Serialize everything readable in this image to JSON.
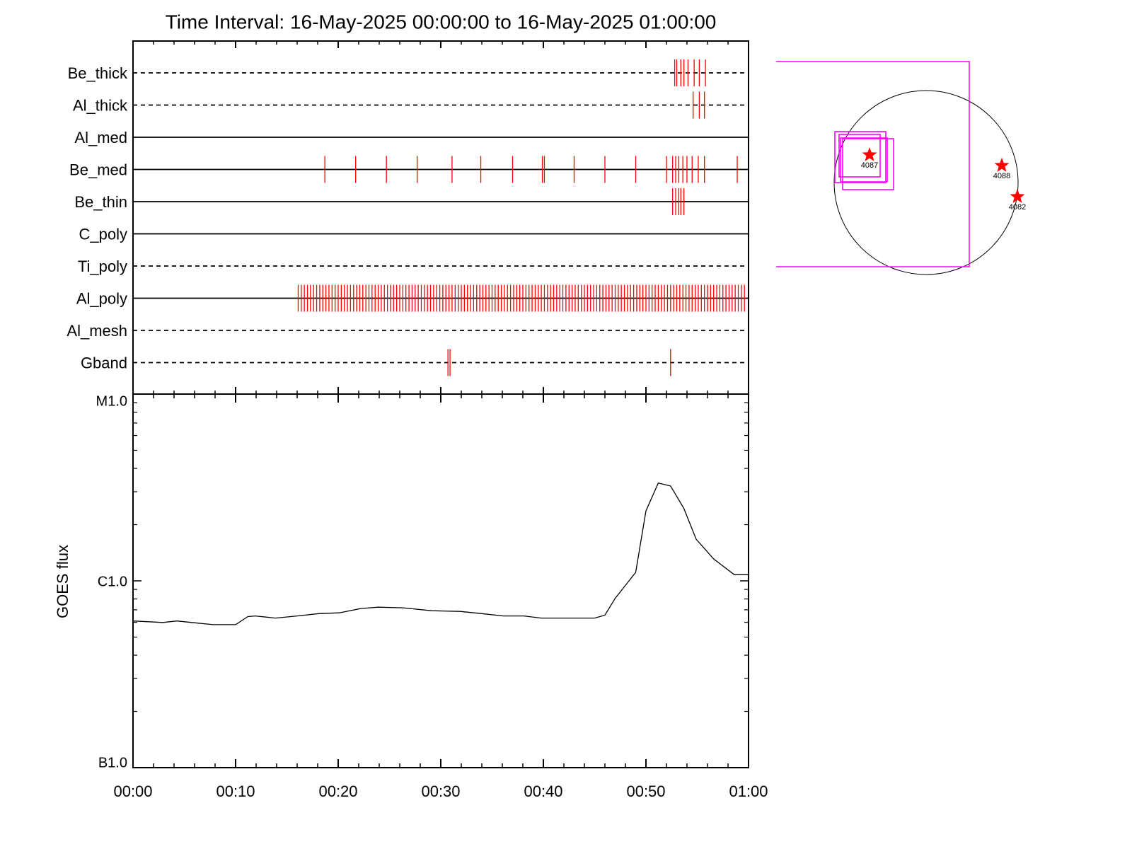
{
  "chart_data": [
    {
      "type": "event",
      "title": "Time Interval: 16-May-2025 00:00:00 to 16-May-2025 01:00:00",
      "xlim": [
        0,
        60
      ],
      "rows": [
        {
          "name": "Be_thick",
          "style": "dashed",
          "color": "#ff0000",
          "events": [
            52.8,
            53.0,
            53.4,
            53.7,
            54.1,
            54.7,
            55.2,
            55.8
          ]
        },
        {
          "name": "Al_thick",
          "style": "dashed",
          "color": "#ff0000",
          "events": [
            54.6,
            55.2,
            55.7
          ]
        },
        {
          "name": "Al_med",
          "style": "solid",
          "color": "#ff0000",
          "events": []
        },
        {
          "name": "Be_med",
          "style": "solid",
          "color": "#ff0000",
          "events": [
            18.7,
            21.7,
            24.7,
            27.7,
            31.1,
            33.9,
            37.0,
            39.9,
            40.1,
            43.0,
            46.0,
            49.0,
            52.0,
            52.6,
            52.9,
            53.2,
            53.6,
            54.0,
            54.5,
            55.1,
            55.7,
            58.9
          ]
        },
        {
          "name": "Be_thin",
          "style": "solid",
          "color": "#ff0000",
          "events": [
            52.6,
            52.9,
            53.2,
            53.4,
            53.7
          ]
        },
        {
          "name": "C_poly",
          "style": "solid",
          "color": "#ff0000",
          "events": []
        },
        {
          "name": "Ti_poly",
          "style": "dashed",
          "color": "#ff0000",
          "events": []
        },
        {
          "name": "Al_poly",
          "style": "solid",
          "color": "#ff0000",
          "events": [
            16.1,
            16.4,
            16.7,
            17.0,
            17.3,
            17.6,
            17.9,
            18.2,
            18.5,
            18.8,
            19.1,
            19.4,
            19.7,
            20.0,
            20.3,
            20.6,
            20.9,
            21.2,
            21.5,
            21.8,
            22.1,
            22.4,
            22.7,
            23.0,
            23.3,
            23.6,
            23.9,
            24.2,
            24.5,
            24.8,
            25.1,
            25.4,
            25.7,
            26.0,
            26.3,
            26.6,
            26.9,
            27.2,
            27.5,
            27.8,
            28.1,
            28.4,
            28.7,
            29.0,
            29.3,
            29.6,
            29.9,
            30.2,
            30.5,
            30.8,
            31.1,
            31.4,
            31.7,
            32.0,
            32.3,
            32.6,
            32.9,
            33.2,
            33.5,
            33.8,
            34.1,
            34.4,
            34.7,
            35.0,
            35.3,
            35.6,
            35.9,
            36.2,
            36.5,
            36.8,
            37.1,
            37.4,
            37.7,
            38.0,
            38.3,
            38.6,
            38.9,
            39.2,
            39.5,
            39.8,
            40.1,
            40.4,
            40.7,
            41.0,
            41.3,
            41.6,
            41.9,
            42.2,
            42.5,
            42.8,
            43.1,
            43.4,
            43.7,
            44.0,
            44.3,
            44.6,
            44.9,
            45.2,
            45.5,
            45.8,
            46.1,
            46.4,
            46.7,
            47.0,
            47.3,
            47.6,
            47.9,
            48.2,
            48.5,
            48.8,
            49.1,
            49.4,
            49.7,
            50.0,
            50.3,
            50.6,
            50.9,
            51.2,
            51.5,
            51.8,
            52.1,
            52.4,
            52.7,
            53.0,
            53.3,
            53.6,
            53.9,
            54.2,
            54.5,
            54.8,
            55.1,
            55.4,
            55.7,
            56.0,
            56.3,
            56.6,
            56.9,
            57.2,
            57.5,
            57.8,
            58.1,
            58.4,
            58.7,
            59.0,
            59.3,
            59.6
          ]
        },
        {
          "name": "Al_mesh",
          "style": "dashed",
          "color": "#ff0000",
          "events": []
        },
        {
          "name": "Gband",
          "style": "dashed",
          "color": "#ff0000",
          "events": [
            30.7,
            30.9,
            52.4
          ]
        }
      ]
    },
    {
      "type": "line",
      "ylabel": "GOES flux",
      "log_y": true,
      "color": "#000000",
      "xlim": [
        0,
        60
      ],
      "xticks": [
        {
          "value": 0,
          "label": "00:00"
        },
        {
          "value": 10,
          "label": "00:10"
        },
        {
          "value": 20,
          "label": "00:20"
        },
        {
          "value": 30,
          "label": "00:30"
        },
        {
          "value": 40,
          "label": "00:40"
        },
        {
          "value": 50,
          "label": "00:50"
        },
        {
          "value": 60,
          "label": "01:00"
        }
      ],
      "ylim": [
        1e-07,
        1e-05
      ],
      "yticks": [
        {
          "value": 1e-07,
          "label": "B1.0"
        },
        {
          "value": 1e-06,
          "label": "C1.0"
        },
        {
          "value": 1e-05,
          "label": "M1.0"
        }
      ],
      "x": [
        0,
        2.9,
        4.3,
        5.7,
        7.8,
        10.0,
        11.2,
        11.9,
        13.9,
        16.0,
        18.1,
        20.1,
        22.2,
        23.9,
        26.3,
        29.1,
        31.9,
        34.0,
        36.1,
        38.1,
        39.8,
        42.3,
        45.0,
        46.0,
        47.0,
        49.0,
        50.0,
        51.2,
        52.4,
        53.7,
        54.9,
        56.6,
        58.6,
        60.0
      ],
      "values": [
        6.1e-07,
        5.99e-07,
        6.1e-07,
        5.99e-07,
        5.83e-07,
        5.83e-07,
        6.44e-07,
        6.49e-07,
        6.32e-07,
        6.49e-07,
        6.68e-07,
        6.74e-07,
        7.11e-07,
        7.23e-07,
        7.17e-07,
        6.92e-07,
        6.86e-07,
        6.68e-07,
        6.49e-07,
        6.49e-07,
        6.32e-07,
        6.32e-07,
        6.32e-07,
        6.55e-07,
        8.06e-07,
        1.11e-06,
        2.37e-06,
        3.34e-06,
        3.22e-06,
        2.44e-06,
        1.67e-06,
        1.31e-06,
        1.08e-06,
        1.08e-06
      ]
    },
    {
      "type": "map",
      "labels": [
        "4087",
        "4088",
        "4082"
      ]
    }
  ]
}
